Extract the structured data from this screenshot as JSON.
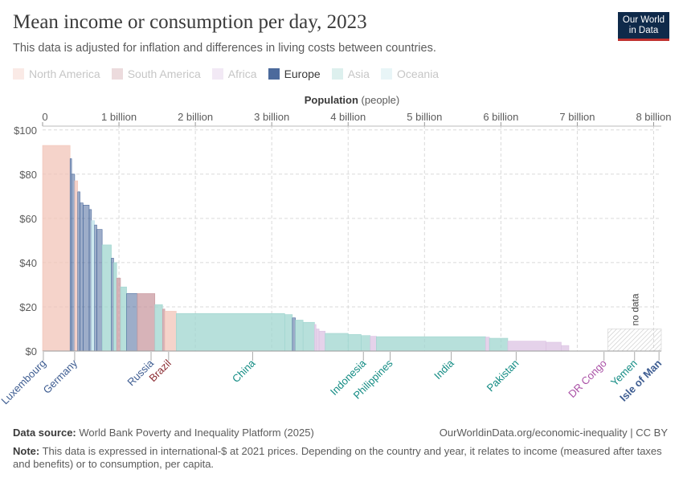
{
  "header": {
    "title": "Mean income or consumption per day, 2023",
    "subtitle": "This data is adjusted for inflation and differences in living costs between countries.",
    "logo_line1": "Our World",
    "logo_line2": "in Data"
  },
  "legend": [
    {
      "label": "North America",
      "color": "#f2c4b8",
      "active": false
    },
    {
      "label": "South America",
      "color": "#c99aa0",
      "active": false
    },
    {
      "label": "Africa",
      "color": "#dcc3e3",
      "active": false
    },
    {
      "label": "Europe",
      "color": "#4c6a9c",
      "active": true
    },
    {
      "label": "Asia",
      "color": "#9fd5cf",
      "active": false
    },
    {
      "label": "Oceania",
      "color": "#bfe3ea",
      "active": false
    }
  ],
  "chart_data": {
    "type": "bar",
    "variant": "variable-width (marimekko)",
    "title": "Mean income or consumption per day, 2023",
    "xlabel": "Population",
    "xlabel_unit": "(people)",
    "ylabel": "",
    "xlim": [
      0,
      8.1
    ],
    "ylim": [
      0,
      105
    ],
    "x_ticks": [
      {
        "v": 0,
        "label": "0"
      },
      {
        "v": 1,
        "label": "1 billion"
      },
      {
        "v": 2,
        "label": "2 billion"
      },
      {
        "v": 3,
        "label": "3 billion"
      },
      {
        "v": 4,
        "label": "4 billion"
      },
      {
        "v": 5,
        "label": "5 billion"
      },
      {
        "v": 6,
        "label": "6 billion"
      },
      {
        "v": 7,
        "label": "7 billion"
      },
      {
        "v": 8,
        "label": "8 billion"
      }
    ],
    "y_ticks": [
      {
        "v": 0,
        "label": "$0"
      },
      {
        "v": 20,
        "label": "$20"
      },
      {
        "v": 40,
        "label": "$40"
      },
      {
        "v": 60,
        "label": "$60"
      },
      {
        "v": 80,
        "label": "$80"
      },
      {
        "v": 100,
        "label": "$100"
      }
    ],
    "no_data_label": "no data",
    "no_data_range": [
      7.4,
      8.1
    ],
    "no_data_value": 10,
    "segments": [
      {
        "w": 0.36,
        "v": 93,
        "r": "North America"
      },
      {
        "w": 0.02,
        "v": 87,
        "r": "Europe"
      },
      {
        "w": 0.04,
        "v": 80,
        "r": "Europe"
      },
      {
        "w": 0.04,
        "v": 77,
        "r": "North America"
      },
      {
        "w": 0.03,
        "v": 72,
        "r": "Europe"
      },
      {
        "w": 0.04,
        "v": 67,
        "r": "Europe"
      },
      {
        "w": 0.08,
        "v": 66,
        "r": "Europe"
      },
      {
        "w": 0.03,
        "v": 64,
        "r": "Europe"
      },
      {
        "w": 0.04,
        "v": 59,
        "r": "Oceania"
      },
      {
        "w": 0.03,
        "v": 57,
        "r": "Europe"
      },
      {
        "w": 0.07,
        "v": 55,
        "r": "Europe"
      },
      {
        "w": 0.12,
        "v": 48,
        "r": "Asia"
      },
      {
        "w": 0.03,
        "v": 42,
        "r": "Europe"
      },
      {
        "w": 0.04,
        "v": 40,
        "r": "Asia"
      },
      {
        "w": 0.05,
        "v": 33,
        "r": "South America"
      },
      {
        "w": 0.08,
        "v": 29,
        "r": "Asia"
      },
      {
        "w": 0.14,
        "v": 26,
        "r": "Europe"
      },
      {
        "w": 0.23,
        "v": 26,
        "r": "South America"
      },
      {
        "w": 0.1,
        "v": 21,
        "r": "Asia"
      },
      {
        "w": 0.03,
        "v": 19,
        "r": "South America"
      },
      {
        "w": 0.15,
        "v": 18,
        "r": "North America"
      },
      {
        "w": 1.42,
        "v": 17,
        "r": "Asia"
      },
      {
        "w": 0.1,
        "v": 16.5,
        "r": "Asia"
      },
      {
        "w": 0.04,
        "v": 15,
        "r": "Europe"
      },
      {
        "w": 0.1,
        "v": 14,
        "r": "Asia"
      },
      {
        "w": 0.15,
        "v": 13,
        "r": "Asia"
      },
      {
        "w": 0.02,
        "v": 12,
        "r": "Africa"
      },
      {
        "w": 0.04,
        "v": 10,
        "r": "Africa"
      },
      {
        "w": 0.08,
        "v": 9,
        "r": "Africa"
      },
      {
        "w": 0.3,
        "v": 8,
        "r": "Asia"
      },
      {
        "w": 0.17,
        "v": 7.5,
        "r": "Asia"
      },
      {
        "w": 0.12,
        "v": 7,
        "r": "Asia"
      },
      {
        "w": 0.08,
        "v": 6.7,
        "r": "Africa"
      },
      {
        "w": 1.43,
        "v": 6.5,
        "r": "Asia"
      },
      {
        "w": 0.05,
        "v": 6.3,
        "r": "Africa"
      },
      {
        "w": 0.24,
        "v": 5.8,
        "r": "Asia"
      },
      {
        "w": 0.5,
        "v": 4.5,
        "r": "Africa"
      },
      {
        "w": 0.2,
        "v": 4,
        "r": "Africa"
      },
      {
        "w": 0.1,
        "v": 2.5,
        "r": "Africa"
      }
    ],
    "country_labels": [
      {
        "name": "Luxembourg",
        "x": 0.01,
        "r": "Europe"
      },
      {
        "name": "Germany",
        "x": 0.42,
        "r": "Europe"
      },
      {
        "name": "Russia",
        "x": 1.42,
        "r": "Europe"
      },
      {
        "name": "Brazil",
        "x": 1.65,
        "r": "South America"
      },
      {
        "name": "China",
        "x": 2.75,
        "r": "Asia"
      },
      {
        "name": "Indonesia",
        "x": 4.2,
        "r": "Asia"
      },
      {
        "name": "Philippines",
        "x": 4.55,
        "r": "Asia"
      },
      {
        "name": "India",
        "x": 5.35,
        "r": "Asia"
      },
      {
        "name": "Pakistan",
        "x": 6.2,
        "r": "Asia"
      },
      {
        "name": "DR Congo",
        "x": 7.35,
        "r": "Africa"
      },
      {
        "name": "Yemen",
        "x": 7.75,
        "r": "Asia"
      },
      {
        "name": "Isle of Man",
        "x": 8.07,
        "r": "Europe"
      }
    ]
  },
  "footer": {
    "source_label": "Data source:",
    "source_text": "World Bank Poverty and Inequality Platform (2025)",
    "url": "OurWorldinData.org/economic-inequality | CC BY",
    "note_label": "Note:",
    "note_text": "This data is expressed in international-$ at 2021 prices. Depending on the country and year, it relates to income (measured after taxes and benefits) or to consumption, per capita."
  }
}
